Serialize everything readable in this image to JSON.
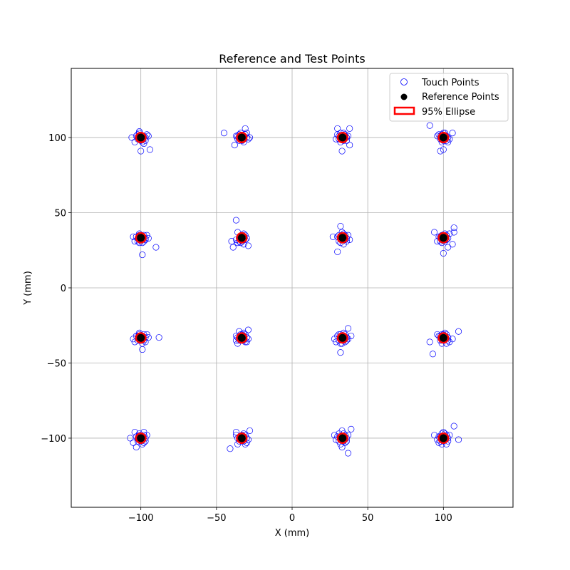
{
  "chart_data": {
    "type": "scatter",
    "title": "Reference and Test Points",
    "xlabel": "X (mm)",
    "ylabel": "Y (mm)",
    "xlim": [
      -146,
      146
    ],
    "ylim": [
      -146,
      146
    ],
    "xticks": [
      -100,
      -50,
      0,
      50,
      100
    ],
    "yticks": [
      -100,
      -50,
      0,
      50,
      100
    ],
    "xtick_labels": [
      "−100",
      "−50",
      "0",
      "50",
      "100"
    ],
    "ytick_labels": [
      "−100",
      "−50",
      "0",
      "50",
      "100"
    ],
    "grid": true,
    "legend_position": "top-right",
    "legend": [
      "Touch Points",
      "Reference Points",
      "95% Ellipse"
    ],
    "colors": {
      "touch": "#0000ff",
      "reference": "#000000",
      "ellipse": "#ff0000",
      "grid": "#b0b0b0"
    },
    "reference_points": [
      [
        -100,
        100
      ],
      [
        -33.3,
        100
      ],
      [
        33.3,
        100
      ],
      [
        100,
        100
      ],
      [
        -100,
        33.3
      ],
      [
        -33.3,
        33.3
      ],
      [
        33.3,
        33.3
      ],
      [
        100,
        33.3
      ],
      [
        -100,
        -33.3
      ],
      [
        -33.3,
        -33.3
      ],
      [
        33.3,
        -33.3
      ],
      [
        100,
        -33.3
      ],
      [
        -100,
        -100
      ],
      [
        -33.3,
        -100
      ],
      [
        33.3,
        -100
      ],
      [
        100,
        -100
      ]
    ],
    "ellipse_radius": [
      3.2,
      3.2
    ],
    "touch_points": [
      [
        -100,
        100
      ],
      [
        -98,
        101
      ],
      [
        -102,
        99
      ],
      [
        -101,
        103
      ],
      [
        -99,
        97
      ],
      [
        -97,
        100
      ],
      [
        -103,
        101
      ],
      [
        -100,
        98
      ],
      [
        -96,
        102
      ],
      [
        -104,
        97
      ],
      [
        -95,
        101
      ],
      [
        -100,
        91
      ],
      [
        -94,
        92
      ],
      [
        -106,
        100
      ],
      [
        -101,
        104
      ],
      [
        -98,
        96
      ],
      [
        -102,
        102
      ],
      [
        -99,
        101
      ],
      [
        -97,
        98
      ],
      [
        -101,
        100
      ],
      [
        -33,
        100
      ],
      [
        -31,
        102
      ],
      [
        -35,
        98
      ],
      [
        -32,
        101
      ],
      [
        -36,
        99
      ],
      [
        -30,
        100
      ],
      [
        -34,
        103
      ],
      [
        -32,
        97
      ],
      [
        -37,
        101
      ],
      [
        -29,
        99
      ],
      [
        -45,
        103
      ],
      [
        -31,
        106
      ],
      [
        -38,
        95
      ],
      [
        -28,
        100
      ],
      [
        -35,
        102
      ],
      [
        -33,
        98
      ],
      [
        -30,
        103
      ],
      [
        -36,
        101
      ],
      [
        -32,
        99
      ],
      [
        -34,
        100
      ],
      [
        33,
        100
      ],
      [
        35,
        101
      ],
      [
        31,
        99
      ],
      [
        34,
        103
      ],
      [
        32,
        97
      ],
      [
        36,
        100
      ],
      [
        30,
        102
      ],
      [
        34,
        98
      ],
      [
        37,
        101
      ],
      [
        29,
        99
      ],
      [
        38,
        106
      ],
      [
        30,
        106
      ],
      [
        38,
        95
      ],
      [
        33,
        91
      ],
      [
        35,
        102
      ],
      [
        31,
        101
      ],
      [
        34,
        100
      ],
      [
        32,
        103
      ],
      [
        36,
        98
      ],
      [
        33,
        99
      ],
      [
        100,
        100
      ],
      [
        102,
        101
      ],
      [
        98,
        99
      ],
      [
        101,
        103
      ],
      [
        99,
        97
      ],
      [
        103,
        100
      ],
      [
        97,
        102
      ],
      [
        100,
        98
      ],
      [
        104,
        99
      ],
      [
        96,
        101
      ],
      [
        91,
        108
      ],
      [
        106,
        103
      ],
      [
        98,
        91
      ],
      [
        100,
        92
      ],
      [
        102,
        98
      ],
      [
        99,
        102
      ],
      [
        101,
        99
      ],
      [
        98,
        101
      ],
      [
        103,
        97
      ],
      [
        100,
        103
      ],
      [
        -100,
        33
      ],
      [
        -98,
        35
      ],
      [
        -102,
        31
      ],
      [
        -101,
        36
      ],
      [
        -99,
        30
      ],
      [
        -97,
        33
      ],
      [
        -103,
        34
      ],
      [
        -100,
        32
      ],
      [
        -96,
        35
      ],
      [
        -104,
        31
      ],
      [
        -95,
        33
      ],
      [
        -99,
        22
      ],
      [
        -90,
        27
      ],
      [
        -105,
        34
      ],
      [
        -101,
        35
      ],
      [
        -98,
        31
      ],
      [
        -102,
        33
      ],
      [
        -99,
        34
      ],
      [
        -97,
        32
      ],
      [
        -101,
        30
      ],
      [
        -33,
        33
      ],
      [
        -31,
        35
      ],
      [
        -35,
        31
      ],
      [
        -32,
        36
      ],
      [
        -36,
        30
      ],
      [
        -30,
        33
      ],
      [
        -34,
        34
      ],
      [
        -32,
        29
      ],
      [
        -37,
        32
      ],
      [
        -29,
        28
      ],
      [
        -37,
        45
      ],
      [
        -39,
        27
      ],
      [
        -40,
        31
      ],
      [
        -36,
        37
      ],
      [
        -35,
        33
      ],
      [
        -33,
        35
      ],
      [
        -31,
        32
      ],
      [
        -34,
        30
      ],
      [
        -32,
        34
      ],
      [
        -33,
        31
      ],
      [
        33,
        33
      ],
      [
        35,
        35
      ],
      [
        31,
        31
      ],
      [
        34,
        36
      ],
      [
        32,
        30
      ],
      [
        36,
        33
      ],
      [
        30,
        34
      ],
      [
        34,
        29
      ],
      [
        37,
        35
      ],
      [
        32,
        41
      ],
      [
        30,
        24
      ],
      [
        27,
        34
      ],
      [
        38,
        32
      ],
      [
        33,
        37
      ],
      [
        35,
        32
      ],
      [
        31,
        35
      ],
      [
        34,
        32
      ],
      [
        32,
        33
      ],
      [
        36,
        31
      ],
      [
        33,
        35
      ],
      [
        100,
        33
      ],
      [
        102,
        35
      ],
      [
        98,
        31
      ],
      [
        101,
        36
      ],
      [
        99,
        30
      ],
      [
        103,
        33
      ],
      [
        97,
        34
      ],
      [
        100,
        32
      ],
      [
        104,
        36
      ],
      [
        96,
        31
      ],
      [
        94,
        37
      ],
      [
        107,
        40
      ],
      [
        106,
        29
      ],
      [
        100,
        23
      ],
      [
        103,
        27
      ],
      [
        107,
        37
      ],
      [
        99,
        35
      ],
      [
        101,
        31
      ],
      [
        98,
        34
      ],
      [
        102,
        32
      ],
      [
        -100,
        -33
      ],
      [
        -98,
        -31
      ],
      [
        -102,
        -35
      ],
      [
        -101,
        -30
      ],
      [
        -99,
        -37
      ],
      [
        -97,
        -33
      ],
      [
        -103,
        -32
      ],
      [
        -100,
        -35
      ],
      [
        -96,
        -31
      ],
      [
        -104,
        -36
      ],
      [
        -95,
        -33
      ],
      [
        -88,
        -33
      ],
      [
        -99,
        -41
      ],
      [
        -105,
        -34
      ],
      [
        -101,
        -31
      ],
      [
        -98,
        -35
      ],
      [
        -102,
        -32
      ],
      [
        -99,
        -34
      ],
      [
        -97,
        -36
      ],
      [
        -101,
        -33
      ],
      [
        -33,
        -33
      ],
      [
        -31,
        -31
      ],
      [
        -35,
        -35
      ],
      [
        -32,
        -30
      ],
      [
        -36,
        -37
      ],
      [
        -30,
        -33
      ],
      [
        -34,
        -31
      ],
      [
        -32,
        -35
      ],
      [
        -37,
        -32
      ],
      [
        -29,
        -34
      ],
      [
        -29,
        -28
      ],
      [
        -37,
        -35
      ],
      [
        -35,
        -29
      ],
      [
        -31,
        -36
      ],
      [
        -34,
        -33
      ],
      [
        -33,
        -31
      ],
      [
        -30,
        -36
      ],
      [
        -36,
        -33
      ],
      [
        -32,
        -32
      ],
      [
        -33,
        -35
      ],
      [
        33,
        -33
      ],
      [
        35,
        -31
      ],
      [
        31,
        -35
      ],
      [
        34,
        -30
      ],
      [
        32,
        -37
      ],
      [
        36,
        -33
      ],
      [
        30,
        -32
      ],
      [
        34,
        -35
      ],
      [
        37,
        -34
      ],
      [
        29,
        -36
      ],
      [
        37,
        -27
      ],
      [
        32,
        -43
      ],
      [
        39,
        -32
      ],
      [
        28,
        -34
      ],
      [
        35,
        -36
      ],
      [
        31,
        -31
      ],
      [
        34,
        -33
      ],
      [
        32,
        -31
      ],
      [
        36,
        -35
      ],
      [
        33,
        -37
      ],
      [
        100,
        -33
      ],
      [
        102,
        -31
      ],
      [
        98,
        -35
      ],
      [
        101,
        -30
      ],
      [
        99,
        -37
      ],
      [
        103,
        -33
      ],
      [
        97,
        -32
      ],
      [
        100,
        -35
      ],
      [
        104,
        -36
      ],
      [
        96,
        -31
      ],
      [
        110,
        -29
      ],
      [
        91,
        -36
      ],
      [
        93,
        -44
      ],
      [
        106,
        -34
      ],
      [
        102,
        -37
      ],
      [
        99,
        -31
      ],
      [
        101,
        -34
      ],
      [
        98,
        -32
      ],
      [
        103,
        -35
      ],
      [
        100,
        -31
      ],
      [
        -100,
        -100
      ],
      [
        -98,
        -98
      ],
      [
        -102,
        -102
      ],
      [
        -101,
        -97
      ],
      [
        -99,
        -104
      ],
      [
        -97,
        -100
      ],
      [
        -103,
        -99
      ],
      [
        -100,
        -102
      ],
      [
        -96,
        -98
      ],
      [
        -104,
        -96
      ],
      [
        -98,
        -96
      ],
      [
        -107,
        -100
      ],
      [
        -103,
        -106
      ],
      [
        -105,
        -103
      ],
      [
        -101,
        -98
      ],
      [
        -98,
        -103
      ],
      [
        -102,
        -100
      ],
      [
        -99,
        -99
      ],
      [
        -97,
        -102
      ],
      [
        -101,
        -101
      ],
      [
        -33,
        -100
      ],
      [
        -31,
        -98
      ],
      [
        -35,
        -102
      ],
      [
        -32,
        -97
      ],
      [
        -36,
        -104
      ],
      [
        -30,
        -100
      ],
      [
        -34,
        -99
      ],
      [
        -32,
        -102
      ],
      [
        -37,
        -98
      ],
      [
        -29,
        -101
      ],
      [
        -28,
        -95
      ],
      [
        -41,
        -107
      ],
      [
        -37,
        -96
      ],
      [
        -31,
        -104
      ],
      [
        -34,
        -101
      ],
      [
        -33,
        -98
      ],
      [
        -30,
        -103
      ],
      [
        -36,
        -100
      ],
      [
        -32,
        -99
      ],
      [
        -33,
        -102
      ],
      [
        33,
        -100
      ],
      [
        35,
        -98
      ],
      [
        31,
        -102
      ],
      [
        34,
        -97
      ],
      [
        32,
        -104
      ],
      [
        36,
        -100
      ],
      [
        30,
        -99
      ],
      [
        34,
        -102
      ],
      [
        37,
        -98
      ],
      [
        29,
        -101
      ],
      [
        39,
        -94
      ],
      [
        37,
        -110
      ],
      [
        28,
        -98
      ],
      [
        33,
        -106
      ],
      [
        35,
        -103
      ],
      [
        31,
        -97
      ],
      [
        34,
        -100
      ],
      [
        32,
        -99
      ],
      [
        36,
        -102
      ],
      [
        33,
        -95
      ],
      [
        100,
        -100
      ],
      [
        102,
        -98
      ],
      [
        98,
        -102
      ],
      [
        101,
        -97
      ],
      [
        99,
        -104
      ],
      [
        103,
        -100
      ],
      [
        97,
        -99
      ],
      [
        100,
        -102
      ],
      [
        104,
        -98
      ],
      [
        96,
        -101
      ],
      [
        107,
        -92
      ],
      [
        110,
        -101
      ],
      [
        94,
        -98
      ],
      [
        102,
        -104
      ],
      [
        99,
        -97
      ],
      [
        101,
        -100
      ],
      [
        98,
        -99
      ],
      [
        103,
        -102
      ],
      [
        100,
        -96
      ],
      [
        97,
        -103
      ]
    ]
  }
}
